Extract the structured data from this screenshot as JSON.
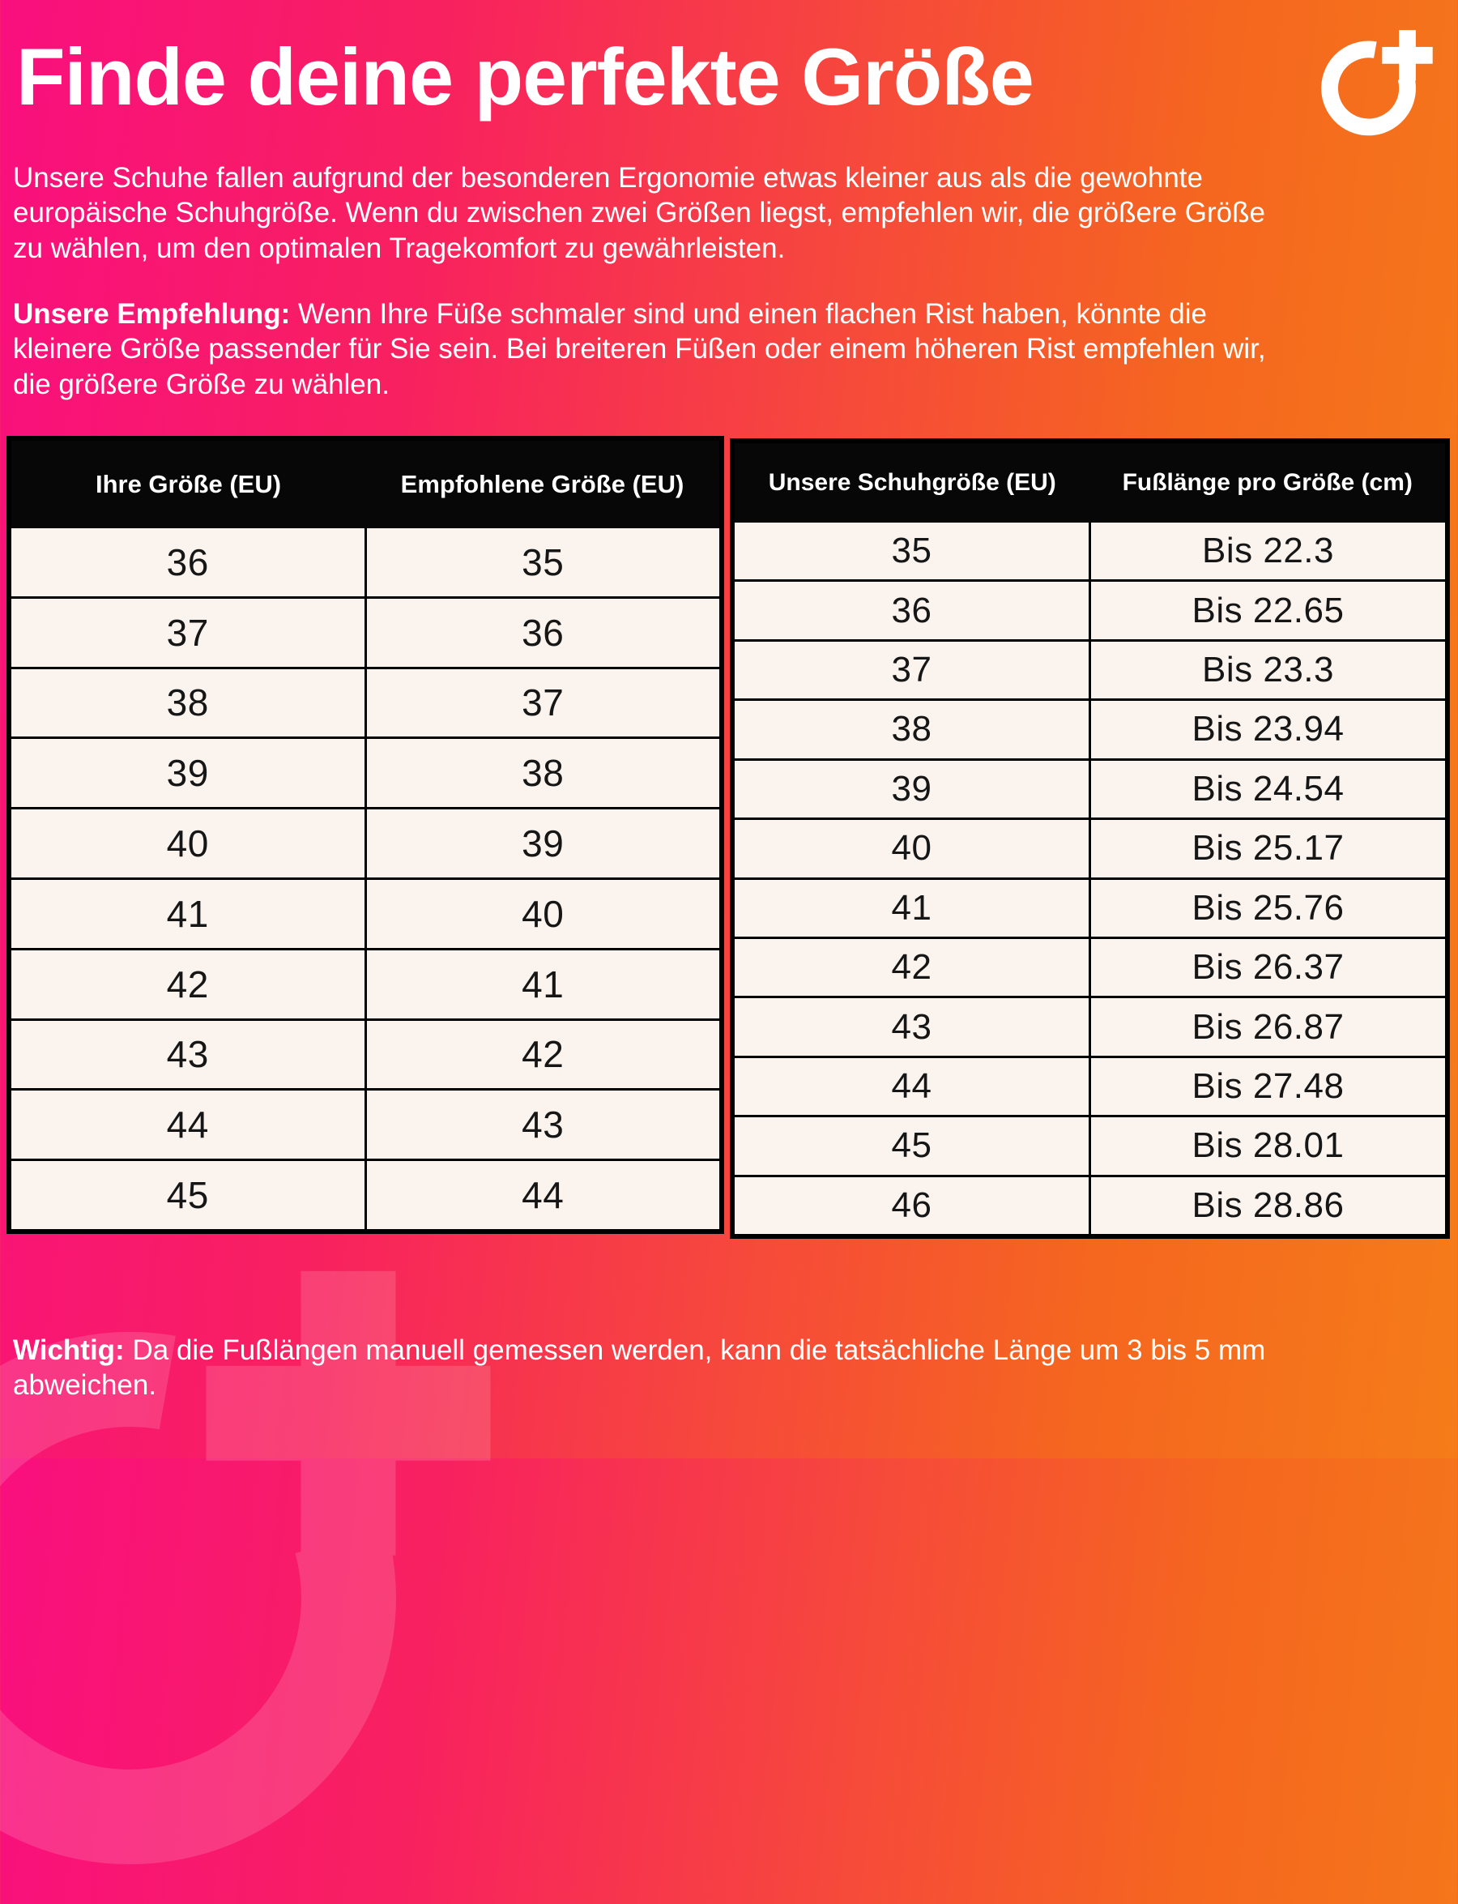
{
  "page": {
    "title": "Finde deine perfekte Größe",
    "intro": "Unsere Schuhe fallen aufgrund der besonderen Ergonomie etwas kleiner aus als die gewohnte europäische Schuhgröße. Wenn du zwischen zwei Größen liegst, empfehlen wir, die größere Größe zu wählen, um den optimalen Tragekomfort zu gewährleisten.",
    "recommendation": {
      "label": "Unsere Empfehlung:",
      "text": " Wenn Ihre Füße schmaler sind und einen flachen Rist haben, könnte die kleinere Größe passender für Sie sein. Bei breiteren Füßen oder einem höheren Rist empfehlen wir, die größere Größe zu wählen."
    },
    "note": {
      "label": "Wichtig:",
      "text": " Da die Fußlängen manuell gemessen werden, kann die tatsächliche Länge um 3 bis 5 mm abweichen."
    }
  },
  "logo": {
    "name": "o-plus-brand-mark",
    "color": "#ffffff"
  },
  "colors": {
    "gradient_left": "#f90f7e",
    "gradient_right": "#f57c19",
    "table_header_bg": "#070707",
    "table_cell_bg": "#faf3ee",
    "table_border": "#000000",
    "text": "#ffffff"
  },
  "size_conversion_table": {
    "headers": [
      "Ihre Größe (EU)",
      "Empfohlene Größe (EU)"
    ],
    "rows": [
      [
        "36",
        "35"
      ],
      [
        "37",
        "36"
      ],
      [
        "38",
        "37"
      ],
      [
        "39",
        "38"
      ],
      [
        "40",
        "39"
      ],
      [
        "41",
        "40"
      ],
      [
        "42",
        "41"
      ],
      [
        "43",
        "42"
      ],
      [
        "44",
        "43"
      ],
      [
        "45",
        "44"
      ]
    ]
  },
  "foot_length_table": {
    "headers": [
      "Unsere Schuhgröße (EU)",
      "Fußlänge pro Größe (cm)"
    ],
    "rows": [
      [
        "35",
        "Bis 22.3"
      ],
      [
        "36",
        "Bis 22.65"
      ],
      [
        "37",
        "Bis 23.3"
      ],
      [
        "38",
        "Bis 23.94"
      ],
      [
        "39",
        "Bis 24.54"
      ],
      [
        "40",
        "Bis 25.17"
      ],
      [
        "41",
        "Bis 25.76"
      ],
      [
        "42",
        "Bis 26.37"
      ],
      [
        "43",
        "Bis 26.87"
      ],
      [
        "44",
        "Bis 27.48"
      ],
      [
        "45",
        "Bis 28.01"
      ],
      [
        "46",
        "Bis 28.86"
      ]
    ]
  }
}
